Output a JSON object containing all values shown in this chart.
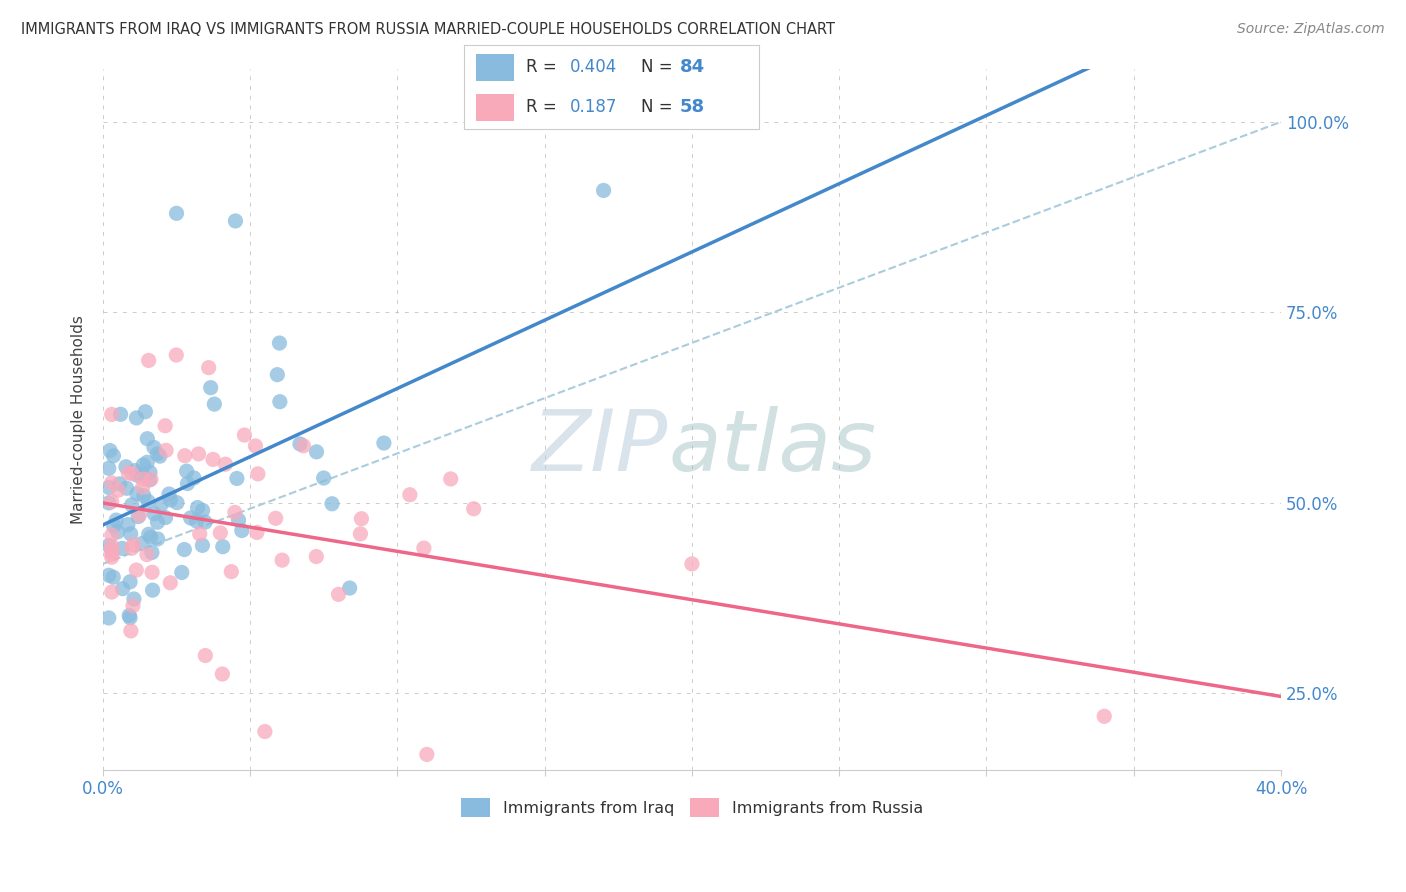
{
  "title": "IMMIGRANTS FROM IRAQ VS IMMIGRANTS FROM RUSSIA MARRIED-COUPLE HOUSEHOLDS CORRELATION CHART",
  "source": "Source: ZipAtlas.com",
  "legend_iraq": "Immigrants from Iraq",
  "legend_russia": "Immigrants from Russia",
  "R_iraq": 0.404,
  "N_iraq": 84,
  "R_russia": 0.187,
  "N_russia": 58,
  "color_iraq": "#88bbdd",
  "color_russia": "#f8aabb",
  "color_trendline_iraq": "#4488cc",
  "color_trendline_russia": "#ee6688",
  "color_dashed": "#aaccdd",
  "xlim": [
    0.0,
    40.0
  ],
  "ylim": [
    15.0,
    107.0
  ],
  "x_ticks_show": [
    "0.0%",
    "40.0%"
  ],
  "y_ticks": [
    25.0,
    50.0,
    75.0,
    100.0
  ],
  "watermark_zip_color": "#ccdde8",
  "watermark_atlas_color": "#aacccc",
  "grid_color": "#cccccc",
  "grid_style": "dotted"
}
